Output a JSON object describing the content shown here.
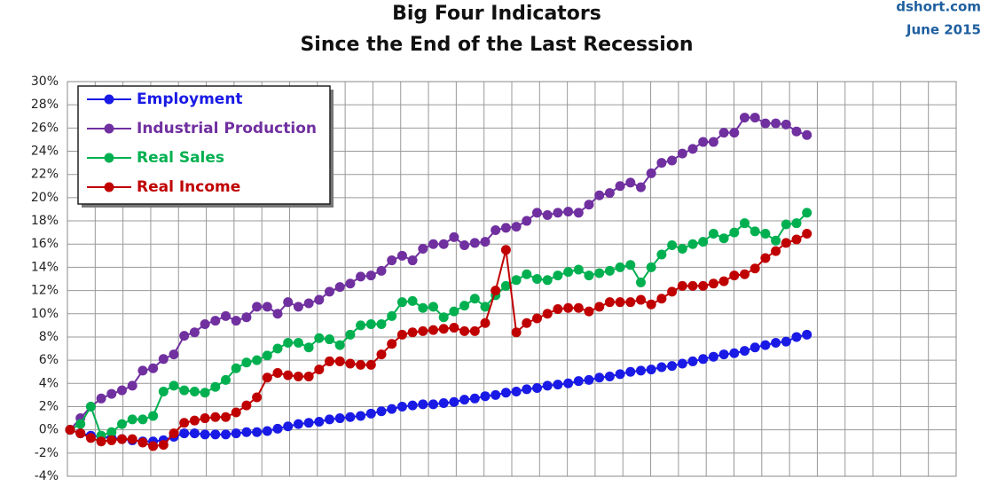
{
  "chart_data": {
    "type": "line",
    "title": "Big Four Indicators",
    "subtitle": "Since the End of the Last Recession",
    "source": "dshort.com",
    "date": "June 2015",
    "categories": [
      null,
      null,
      null,
      null,
      null,
      null,
      null,
      null,
      null,
      null,
      null,
      null,
      null,
      null,
      null,
      null,
      null,
      null,
      null,
      null,
      null,
      null,
      null,
      null,
      null,
      null,
      null,
      null,
      null,
      null,
      null,
      null,
      null,
      null,
      null,
      null,
      null,
      null,
      null,
      null,
      null,
      null,
      null,
      null,
      null,
      null,
      null,
      null,
      null,
      null,
      null,
      null,
      null,
      null,
      null,
      null,
      null,
      null,
      null,
      null,
      null,
      null,
      null,
      null,
      null,
      null,
      null,
      null,
      null,
      null,
      null,
      null
    ],
    "series": [
      {
        "name": "Employment",
        "color": "#1a1ae6",
        "values": [
          0,
          -0.3,
          -0.5,
          -0.6,
          -0.7,
          -0.8,
          -0.9,
          -1.0,
          -1.0,
          -0.9,
          -0.6,
          -0.3,
          -0.3,
          -0.4,
          -0.4,
          -0.4,
          -0.3,
          -0.2,
          -0.2,
          -0.1,
          0.1,
          0.3,
          0.5,
          0.6,
          0.7,
          0.9,
          1.0,
          1.1,
          1.2,
          1.4,
          1.6,
          1.8,
          2.0,
          2.1,
          2.2,
          2.2,
          2.3,
          2.4,
          2.6,
          2.7,
          2.9,
          3.0,
          3.2,
          3.3,
          3.5,
          3.6,
          3.8,
          3.9,
          4.0,
          4.2,
          4.3,
          4.5,
          4.6,
          4.8,
          5.0,
          5.1,
          5.2,
          5.4,
          5.5,
          5.7,
          5.9,
          6.1,
          6.3,
          6.5,
          6.6,
          6.8,
          7.1,
          7.3,
          7.5,
          7.6,
          8.0,
          8.2
        ]
      },
      {
        "name": "Industrial Production",
        "color": "#7030a0",
        "values": [
          0,
          1.0,
          2.0,
          2.7,
          3.1,
          3.4,
          3.8,
          5.1,
          5.3,
          6.1,
          6.5,
          8.1,
          8.4,
          9.1,
          9.4,
          9.8,
          9.4,
          9.7,
          10.6,
          10.6,
          10.0,
          11.0,
          10.6,
          10.9,
          11.2,
          11.9,
          12.3,
          12.6,
          13.2,
          13.3,
          13.7,
          14.6,
          15.0,
          14.6,
          15.6,
          16.0,
          16.0,
          16.6,
          15.9,
          16.1,
          16.2,
          17.2,
          17.4,
          17.5,
          18.0,
          18.7,
          18.5,
          18.7,
          18.8,
          18.7,
          19.4,
          20.2,
          20.4,
          21.0,
          21.3,
          20.9,
          22.1,
          23.0,
          23.2,
          23.8,
          24.2,
          24.8,
          24.8,
          25.6,
          25.6,
          26.9,
          26.9,
          26.4,
          26.4,
          26.3,
          25.7,
          25.4
        ]
      },
      {
        "name": "Real Sales",
        "color": "#00b050",
        "values": [
          0,
          0.5,
          2.0,
          -0.5,
          -0.2,
          0.5,
          0.9,
          0.9,
          1.2,
          3.3,
          3.8,
          3.4,
          3.3,
          3.2,
          3.7,
          4.3,
          5.3,
          5.8,
          6.0,
          6.4,
          7.0,
          7.5,
          7.5,
          7.1,
          7.9,
          7.8,
          7.3,
          8.2,
          9.0,
          9.1,
          9.1,
          9.8,
          11.0,
          11.1,
          10.5,
          10.6,
          9.7,
          10.2,
          10.7,
          11.3,
          10.6,
          11.6,
          12.4,
          12.9,
          13.4,
          13.0,
          12.9,
          13.3,
          13.6,
          13.8,
          13.3,
          13.5,
          13.7,
          14.0,
          14.2,
          12.7,
          14.0,
          15.1,
          15.9,
          15.6,
          16.0,
          16.2,
          16.9,
          16.5,
          17.0,
          17.8,
          17.1,
          16.9,
          16.3,
          17.7,
          17.8,
          18.7
        ]
      },
      {
        "name": "Real Income",
        "color": "#c00000",
        "values": [
          0,
          -0.3,
          -0.7,
          -1.0,
          -0.9,
          -0.8,
          -0.8,
          -1.1,
          -1.4,
          -1.3,
          -0.3,
          0.6,
          0.8,
          1.0,
          1.1,
          1.1,
          1.5,
          2.1,
          2.8,
          4.5,
          4.9,
          4.7,
          4.6,
          4.6,
          5.2,
          5.9,
          5.9,
          5.7,
          5.6,
          5.6,
          6.5,
          7.4,
          8.2,
          8.4,
          8.5,
          8.6,
          8.7,
          8.8,
          8.5,
          8.5,
          9.2,
          12.0,
          15.5,
          8.4,
          9.2,
          9.6,
          10.0,
          10.4,
          10.5,
          10.5,
          10.2,
          10.6,
          11.0,
          11.0,
          11.0,
          11.2,
          10.8,
          11.3,
          11.9,
          12.4,
          12.4,
          12.4,
          12.6,
          12.8,
          13.3,
          13.4,
          13.9,
          14.8,
          15.4,
          16.1,
          16.4,
          16.9
        ]
      }
    ],
    "ylim": [
      -4,
      30
    ],
    "yticks": [
      {
        "value": -4,
        "label": "-4%"
      },
      {
        "value": -2,
        "label": "-2%"
      },
      {
        "value": 0,
        "label": "0%"
      },
      {
        "value": 2,
        "label": "2%"
      },
      {
        "value": 4,
        "label": "4%"
      },
      {
        "value": 6,
        "label": "6%"
      },
      {
        "value": 8,
        "label": "8%"
      },
      {
        "value": 10,
        "label": "10%"
      },
      {
        "value": 12,
        "label": "12%"
      },
      {
        "value": 14,
        "label": "14%"
      },
      {
        "value": 16,
        "label": "16%"
      },
      {
        "value": 18,
        "label": "18%"
      },
      {
        "value": 20,
        "label": "20%"
      },
      {
        "value": 22,
        "label": "22%"
      },
      {
        "value": 24,
        "label": "24%"
      },
      {
        "value": 26,
        "label": "26%"
      },
      {
        "value": 28,
        "label": "28%"
      },
      {
        "value": 30,
        "label": "30%"
      }
    ],
    "grid": true,
    "legend": "top-left"
  }
}
